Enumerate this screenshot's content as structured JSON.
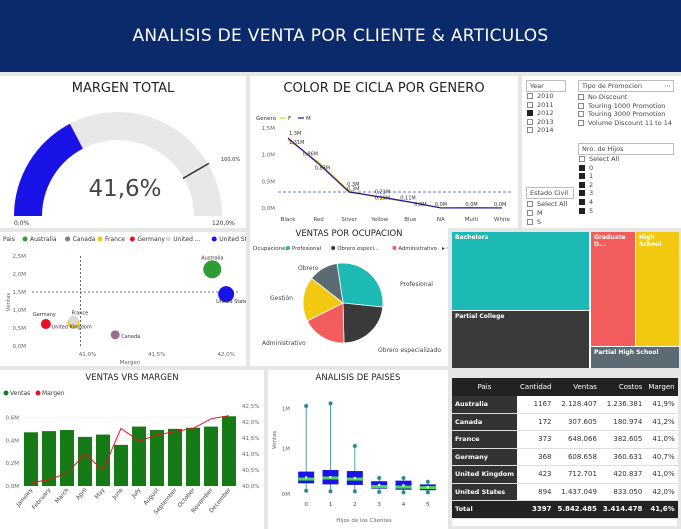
{
  "header": {
    "title": "ANALISIS DE VENTA POR CLIENTE & ARTICULOS"
  },
  "margen": {
    "title": "MARGEN TOTAL",
    "value": "41,6%",
    "min": "0,0%",
    "max": "120,0%",
    "target": "100,0%",
    "fraction": 0.347,
    "target_fraction": 0.833
  },
  "color": {
    "title": "COLOR DE CICLA POR GENERO",
    "legend_title": "Genero",
    "legend": [
      "F",
      "M"
    ],
    "colors": {
      "F": "#f2c811",
      "M": "#1a13a8"
    },
    "chart_data": {
      "type": "line",
      "categories": [
        "Black",
        "Red",
        "Silver",
        "Yellow",
        "Blue",
        "NA",
        "Multi",
        "White"
      ],
      "series": [
        {
          "name": "F",
          "values": [
            1.28,
            0.86,
            0.32,
            0.19,
            0.11,
            0.002,
            0.005,
            0.001
          ]
        },
        {
          "name": "M",
          "values": [
            1.31,
            0.83,
            0.3,
            0.21,
            0.11,
            0.001,
            0.003,
            0.001
          ]
        }
      ],
      "labels": [
        "1,3M",
        "1,31M",
        "0,86M",
        "0,83M",
        "0,3M",
        "0,3M",
        "0,21M",
        "0,19M",
        "0,11M",
        "0,0M",
        "0,0M",
        "0,0M",
        "0,0M"
      ],
      "yticks": [
        "1,5M",
        "1,0M",
        "0,5M",
        "0,0M"
      ],
      "ylim": [
        0,
        1.5
      ]
    }
  },
  "slicers": {
    "year": {
      "header": "Year",
      "items": [
        {
          "label": "2010",
          "on": false
        },
        {
          "label": "2011",
          "on": false
        },
        {
          "label": "2012",
          "on": true
        },
        {
          "label": "2013",
          "on": false
        },
        {
          "label": "2014",
          "on": false
        }
      ]
    },
    "promo": {
      "header": "Tipo de Promocion",
      "items": [
        {
          "label": "No Discount",
          "on": false
        },
        {
          "label": "Touring 1000 Promotion",
          "on": false
        },
        {
          "label": "Touring 3000 Promotion",
          "on": false
        },
        {
          "label": "Volume Discount 11 to 14",
          "on": false
        }
      ]
    },
    "hijos": {
      "header": "Nro. de Hijos",
      "items": [
        {
          "label": "Select All",
          "on": false
        },
        {
          "label": "0",
          "on": true
        },
        {
          "label": "1",
          "on": true
        },
        {
          "label": "2",
          "on": true
        },
        {
          "label": "3",
          "on": true
        },
        {
          "label": "4",
          "on": true
        },
        {
          "label": "5",
          "on": true
        }
      ]
    },
    "estado": {
      "header": "Estado Civil",
      "items": [
        {
          "label": "Select All",
          "on": false
        },
        {
          "label": "M",
          "on": false
        },
        {
          "label": "S",
          "on": false
        }
      ]
    }
  },
  "treemap": {
    "items": [
      "Bachelors",
      "Graduate D...",
      "High School",
      "Partial College",
      "Partial High School"
    ]
  },
  "scatter": {
    "legend_title": "Pais",
    "legend": [
      {
        "name": "Australia",
        "color": "#2e9c35"
      },
      {
        "name": "Canada",
        "color": "#9c6b8c"
      },
      {
        "name": "France",
        "color": "#f2c811"
      },
      {
        "name": "Germany",
        "color": "#e81123"
      },
      {
        "name": "United ...",
        "color": "#d9d9d9"
      },
      {
        "name": "United St...",
        "color": "#1a13e8"
      }
    ],
    "ylabel": "Ventas",
    "xlabel": "Margen",
    "yticks": [
      "2,5M",
      "2,0M",
      "1,5M",
      "1,0M",
      "0,5M",
      "0,0M"
    ],
    "xticks": [
      "41,0%",
      "41,5%",
      "42,0%"
    ],
    "chart_data": {
      "type": "scatter",
      "points": [
        {
          "name": "Australia",
          "x": 41.9,
          "y": 2.13,
          "color": "#2e9c35"
        },
        {
          "name": "United States",
          "x": 42.0,
          "y": 1.44,
          "color": "#1a13e8"
        },
        {
          "name": "Germany",
          "x": 40.7,
          "y": 0.61,
          "color": "#e81123"
        },
        {
          "name": "France",
          "x": 40.9,
          "y": 0.65,
          "color": "#f2c811"
        },
        {
          "name": "United Kingdom",
          "x": 40.9,
          "y": 0.71,
          "color": "#d9d9d9"
        },
        {
          "name": "Canada",
          "x": 41.2,
          "y": 0.31,
          "color": "#9c6b8c"
        }
      ],
      "xlim": [
        40.6,
        42.1
      ],
      "ylim": [
        0,
        2.5
      ]
    }
  },
  "pie": {
    "title": "VENTAS POR OCUPACION",
    "legend_title": "Ocupaciones",
    "legend": [
      "Profesional",
      "Obrero especi...",
      "Administrativo",
      "Gestion"
    ],
    "chart_data": {
      "type": "pie",
      "slices": [
        {
          "name": "Profesional",
          "value": 29,
          "color": "#1dbab5"
        },
        {
          "name": "Obrero especializado",
          "value": 23,
          "color": "#3a3a3a"
        },
        {
          "name": "Administrativo",
          "value": 18,
          "color": "#f25c5c"
        },
        {
          "name": "Gestión",
          "value": 18,
          "color": "#f2c811"
        },
        {
          "name": "Obrero",
          "value": 12,
          "color": "#5c6b73"
        }
      ]
    }
  },
  "combo": {
    "title": "VENTAS VRS MARGEN",
    "legend": [
      "Ventas",
      "Margen"
    ],
    "yticks_left": [
      "0,6M",
      "0,4M",
      "0,2M",
      "0,0M"
    ],
    "yticks_right": [
      "42,5%",
      "42,0%",
      "41,5%",
      "41,0%",
      "40,5%",
      "40,0%"
    ],
    "chart_data": {
      "type": "bar",
      "categories": [
        "January",
        "February",
        "March",
        "April",
        "May",
        "June",
        "July",
        "August",
        "September",
        "October",
        "November",
        "December"
      ],
      "series": [
        {
          "name": "Ventas",
          "values": [
            0.47,
            0.48,
            0.49,
            0.43,
            0.45,
            0.36,
            0.52,
            0.49,
            0.5,
            0.51,
            0.52,
            0.61
          ]
        },
        {
          "name": "Margen",
          "values": [
            40.1,
            40.2,
            40.4,
            41.0,
            40.5,
            41.8,
            41.4,
            41.6,
            41.7,
            41.8,
            42.1,
            42.2
          ]
        }
      ],
      "ylim": [
        0,
        0.7
      ],
      "y2lim": [
        40.0,
        42.5
      ]
    }
  },
  "box": {
    "title": "ANALISIS DE PAISES",
    "ylabel": "Ventas",
    "xlabel": "Hijos de los Clientes",
    "yticks": [
      "1M",
      "1M",
      "0M"
    ],
    "chart_data": {
      "type": "box",
      "x": [
        0,
        1,
        2,
        3,
        4,
        5
      ],
      "boxes": [
        {
          "min": 0.06,
          "q1": 0.2,
          "med": 0.28,
          "q3": 0.42,
          "max": 1.65
        },
        {
          "min": 0.05,
          "q1": 0.18,
          "med": 0.3,
          "q3": 0.45,
          "max": 1.7
        },
        {
          "min": 0.05,
          "q1": 0.17,
          "med": 0.28,
          "q3": 0.43,
          "max": 0.9
        },
        {
          "min": 0.04,
          "q1": 0.1,
          "med": 0.14,
          "q3": 0.24,
          "max": 0.3
        },
        {
          "min": 0.03,
          "q1": 0.08,
          "med": 0.13,
          "q3": 0.25,
          "max": 0.3
        },
        {
          "min": 0.03,
          "q1": 0.07,
          "med": 0.12,
          "q3": 0.18,
          "max": 0.23
        }
      ]
    }
  },
  "table": {
    "headers": [
      "Pais",
      "Cantidad",
      "Ventas",
      "Costos",
      "Margen"
    ],
    "rows": [
      [
        "Australia",
        "1167",
        "2.128.407",
        "1.236.381",
        "41,9%"
      ],
      [
        "Canada",
        "172",
        "307.605",
        "180.974",
        "41,2%"
      ],
      [
        "France",
        "373",
        "648.066",
        "382.605",
        "41,0%"
      ],
      [
        "Germany",
        "368",
        "608.658",
        "360.631",
        "40,7%"
      ],
      [
        "United Kingdom",
        "423",
        "712.701",
        "420.837",
        "41,0%"
      ],
      [
        "United States",
        "894",
        "1.437.049",
        "833.050",
        "42,0%"
      ]
    ],
    "total": [
      "Total",
      "3397",
      "5.842.485",
      "3.414.478",
      "41,6%"
    ]
  }
}
